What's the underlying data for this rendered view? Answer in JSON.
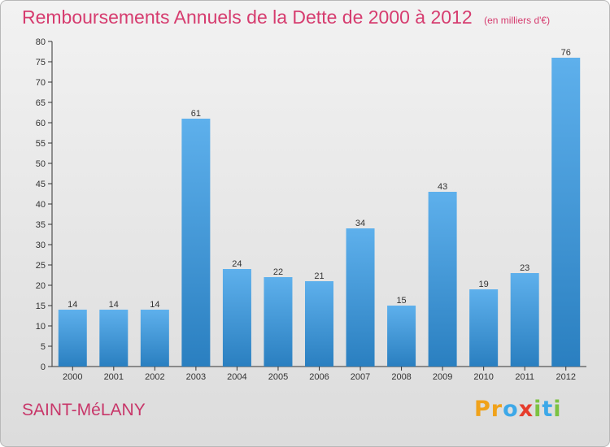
{
  "header": {
    "title": "Remboursements Annuels de la Dette de 2000 à 2012",
    "subtitle": "(en milliers d'€)"
  },
  "footer": {
    "town": "SAINT-MéLANY",
    "brand_letters": [
      "P",
      "r",
      "o",
      "x",
      "i",
      "t",
      "i"
    ]
  },
  "colors": {
    "title": "#d63c6f",
    "bar_light": "#5eb0ec",
    "bar_dark": "#2a7fc0",
    "brand_letters": [
      "#f0a21b",
      "#f0a21b",
      "#3da8e8",
      "#e63c2c",
      "#7cc242",
      "#3da8e8",
      "#7cc242"
    ]
  },
  "chart_data": {
    "type": "bar",
    "categories": [
      "2000",
      "2001",
      "2002",
      "2003",
      "2004",
      "2005",
      "2006",
      "2007",
      "2008",
      "2009",
      "2010",
      "2011",
      "2012"
    ],
    "values": [
      14,
      14,
      14,
      61,
      24,
      22,
      21,
      34,
      15,
      43,
      19,
      23,
      76
    ],
    "title": "Remboursements Annuels de la Dette de 2000 à 2012",
    "subtitle": "(en milliers d'€)",
    "xlabel": "",
    "ylabel": "",
    "ylim": [
      0,
      80
    ],
    "yticks": [
      0,
      5,
      10,
      15,
      20,
      25,
      30,
      35,
      40,
      45,
      50,
      55,
      60,
      65,
      70,
      75,
      80
    ],
    "grid": false,
    "legend": "none",
    "data_labels": true
  }
}
